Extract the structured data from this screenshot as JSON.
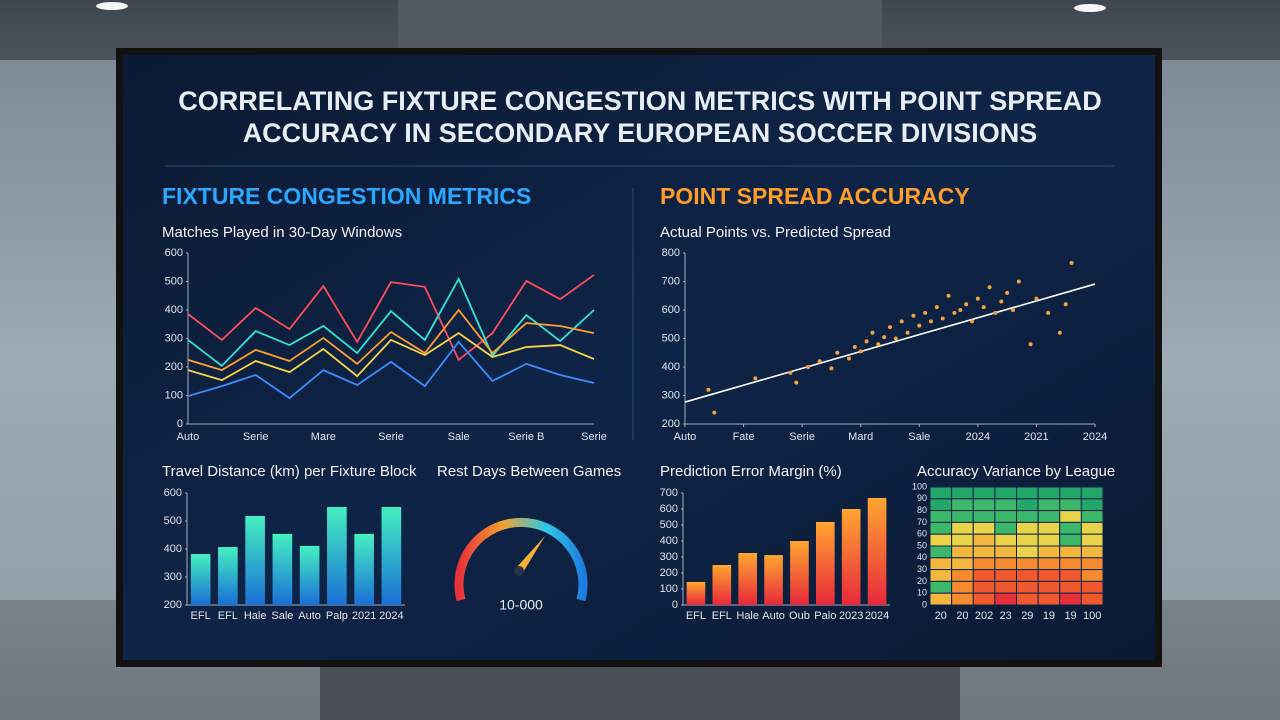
{
  "title": [
    "CORRELATING FIXTURE CONGESTION METRICS WITH POINT SPREAD",
    "ACCURACY IN SECONDARY EUROPEAN SOCCER DIVISIONS"
  ],
  "sections": [
    "FIXTURE CONGESTION METRICS",
    "POINT SPREAD ACCURACY"
  ],
  "gauge": {
    "title": "Rest Days Between Games",
    "label": "10-000"
  },
  "chart_data": [
    {
      "type": "line",
      "title": "Matches Played in 30-Day Windows",
      "categories": [
        "Auto",
        null,
        "Serie",
        null,
        "Mare",
        null,
        "Serie",
        null,
        "Sale",
        null,
        "Serie B",
        null,
        "Serie"
      ],
      "ylim": [
        0,
        600
      ],
      "yticks": [
        0,
        100,
        200,
        300,
        400,
        500,
        600
      ],
      "series": [
        {
          "color": "#ff4d5e",
          "values": [
            386,
            295,
            407,
            333,
            484,
            288,
            498,
            481,
            225,
            319,
            502,
            438,
            523
          ]
        },
        {
          "color": "#2ee6d6",
          "values": [
            295,
            204,
            326,
            277,
            344,
            249,
            396,
            295,
            509,
            239,
            382,
            291,
            400
          ]
        },
        {
          "color": "#ff9f2e",
          "values": [
            225,
            189,
            260,
            221,
            302,
            211,
            323,
            249,
            400,
            249,
            354,
            344,
            319
          ]
        },
        {
          "color": "#f5d547",
          "values": [
            189,
            154,
            221,
            182,
            263,
            168,
            295,
            242,
            319,
            235,
            270,
            277,
            228
          ]
        },
        {
          "color": "#3b8cff",
          "values": [
            98,
            133,
            172,
            91,
            189,
            137,
            218,
            133,
            288,
            151,
            211,
            172,
            144
          ]
        }
      ]
    },
    {
      "type": "scatter",
      "title": "Actual Points vs. Predicted Spread",
      "color": "#f6a23a",
      "xlim": [
        0,
        7
      ],
      "xticks": [
        {
          "value": 0,
          "label": "Auto"
        },
        {
          "value": 1,
          "label": "Fate"
        },
        {
          "value": 2,
          "label": "Serie"
        },
        {
          "value": 3,
          "label": "Mard"
        },
        {
          "value": 4,
          "label": "Sale"
        },
        {
          "value": 5,
          "label": "2024"
        },
        {
          "value": 6,
          "label": "2021"
        },
        {
          "value": 7,
          "label": "2024"
        }
      ],
      "ylim": [
        200,
        800
      ],
      "yticks": [
        200,
        300,
        400,
        500,
        600,
        700,
        800
      ],
      "x": [
        0.4,
        0.5,
        1.2,
        1.8,
        1.9,
        2.1,
        2.3,
        2.5,
        2.6,
        2.8,
        2.9,
        3.0,
        3.1,
        3.2,
        3.3,
        3.4,
        3.5,
        3.6,
        3.7,
        3.8,
        3.9,
        4.0,
        4.1,
        4.2,
        4.3,
        4.4,
        4.5,
        4.6,
        4.7,
        4.8,
        4.9,
        5.0,
        5.1,
        5.2,
        5.3,
        5.4,
        5.5,
        5.6,
        5.7,
        5.9,
        6.0,
        6.2,
        6.4,
        6.5,
        6.6
      ],
      "values": [
        320,
        240,
        360,
        380,
        345,
        400,
        420,
        395,
        450,
        430,
        470,
        455,
        490,
        520,
        480,
        505,
        540,
        500,
        560,
        520,
        580,
        545,
        590,
        560,
        610,
        570,
        650,
        590,
        600,
        620,
        560,
        640,
        610,
        680,
        590,
        630,
        660,
        600,
        700,
        480,
        640,
        590,
        520,
        620,
        765
      ],
      "trend": {
        "color": "#ffffff",
        "x": [
          0,
          7
        ],
        "values": [
          277,
          691
        ]
      }
    },
    {
      "type": "bar",
      "title": "Travel Distance (km) per Fixture Block",
      "categories": [
        "EFL",
        "EFL",
        "Hale",
        "Sale",
        "Auto",
        "Palp",
        "2021",
        "2024"
      ],
      "values": [
        382,
        407,
        518,
        454,
        411,
        550,
        454,
        550
      ],
      "colors": [
        "#45f0c0",
        "#1a6fd6"
      ],
      "ylim": [
        200,
        600
      ],
      "yticks": [
        200,
        300,
        400,
        500,
        600
      ]
    },
    {
      "type": "bar",
      "title": "Prediction Error Margin (%)",
      "categories": [
        "EFL",
        "EFL",
        "Hale",
        "Auto",
        "Oub",
        "Palo",
        "2023",
        "2024"
      ],
      "values": [
        144,
        250,
        325,
        312,
        400,
        519,
        600,
        669
      ],
      "colors": [
        "#ffa630",
        "#e8283c"
      ],
      "ylim": [
        0,
        700
      ],
      "yticks": [
        0,
        100,
        200,
        300,
        400,
        500,
        600,
        700
      ]
    },
    {
      "type": "heatmap",
      "title": "Accuracy Variance by League",
      "categories": [
        "20",
        "20",
        "202",
        "23",
        "29",
        "19",
        "19",
        "100"
      ],
      "ylim": [
        0,
        100
      ],
      "yticks": [
        0,
        10,
        20,
        30,
        40,
        50,
        60,
        70,
        80,
        90,
        100
      ],
      "colors": [
        "#e8303a",
        "#f0592e",
        "#f58a2f",
        "#f2b73c",
        "#e9d348",
        "#3db86a",
        "#22a66a",
        "#1e9a62"
      ],
      "values": [
        [
          85,
          80,
          82,
          78,
          84,
          80,
          76,
          82
        ],
        [
          75,
          72,
          70,
          74,
          78,
          72,
          70,
          76
        ],
        [
          70,
          66,
          68,
          64,
          72,
          70,
          62,
          66
        ],
        [
          66,
          62,
          60,
          64,
          58,
          62,
          64,
          60
        ],
        [
          62,
          58,
          48,
          52,
          55,
          50,
          66,
          52
        ],
        [
          64,
          42,
          45,
          40,
          50,
          48,
          44,
          46
        ],
        [
          45,
          38,
          30,
          32,
          28,
          30,
          26,
          34
        ],
        [
          40,
          28,
          22,
          20,
          24,
          18,
          22,
          25
        ],
        [
          68,
          25,
          18,
          15,
          20,
          16,
          14,
          20
        ],
        [
          42,
          30,
          20,
          12,
          18,
          15,
          10,
          22
        ]
      ]
    }
  ]
}
